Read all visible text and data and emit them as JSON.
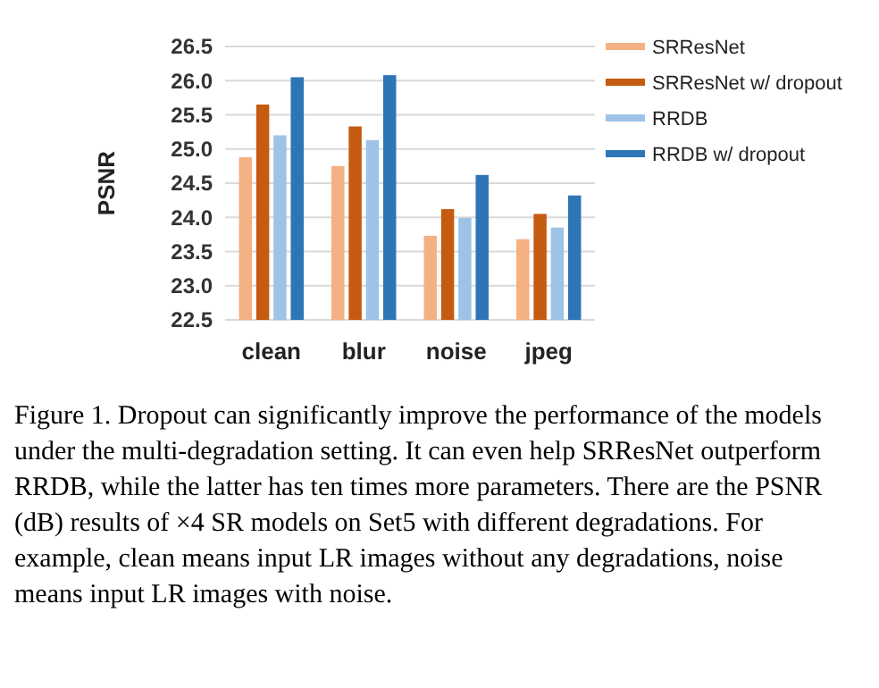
{
  "chart_data": {
    "type": "bar",
    "ylabel": "PSNR",
    "categories": [
      "clean",
      "blur",
      "noise",
      "jpeg"
    ],
    "series": [
      {
        "name": "SRResNet",
        "color": "#f4b183",
        "values": [
          24.88,
          24.75,
          23.73,
          23.68
        ]
      },
      {
        "name": "SRResNet w/ dropout",
        "color": "#c55a11",
        "values": [
          25.65,
          25.33,
          24.12,
          24.05
        ]
      },
      {
        "name": "RRDB",
        "color": "#9dc3e6",
        "values": [
          25.2,
          25.13,
          23.99,
          23.85
        ]
      },
      {
        "name": "RRDB w/ dropout",
        "color": "#2e75b6",
        "values": [
          26.05,
          26.08,
          24.62,
          24.32
        ]
      }
    ],
    "ylim": [
      22.5,
      26.5
    ],
    "yticks": [
      22.5,
      {
        "value": 23,
        "label": "23.0"
      },
      23.5,
      {
        "value": 24,
        "label": "24.0"
      },
      24.5,
      {
        "value": 25,
        "label": "25.0"
      },
      25.5,
      {
        "value": 26,
        "label": "26.0"
      },
      26.5
    ],
    "grid": "y",
    "legend": "right",
    "annotations": [
      "Figure 1. Dropout can significantly improve the performance of the models under the multi-degradation setting. It can even help SRResNet outperform RRDB, while the latter has ten times more parameters. There are the PSNR (dB) results of ×4 SR models on Set5 with different degradations. For example, clean means input LR images without any degradations, noise means input LR images with noise."
    ]
  }
}
